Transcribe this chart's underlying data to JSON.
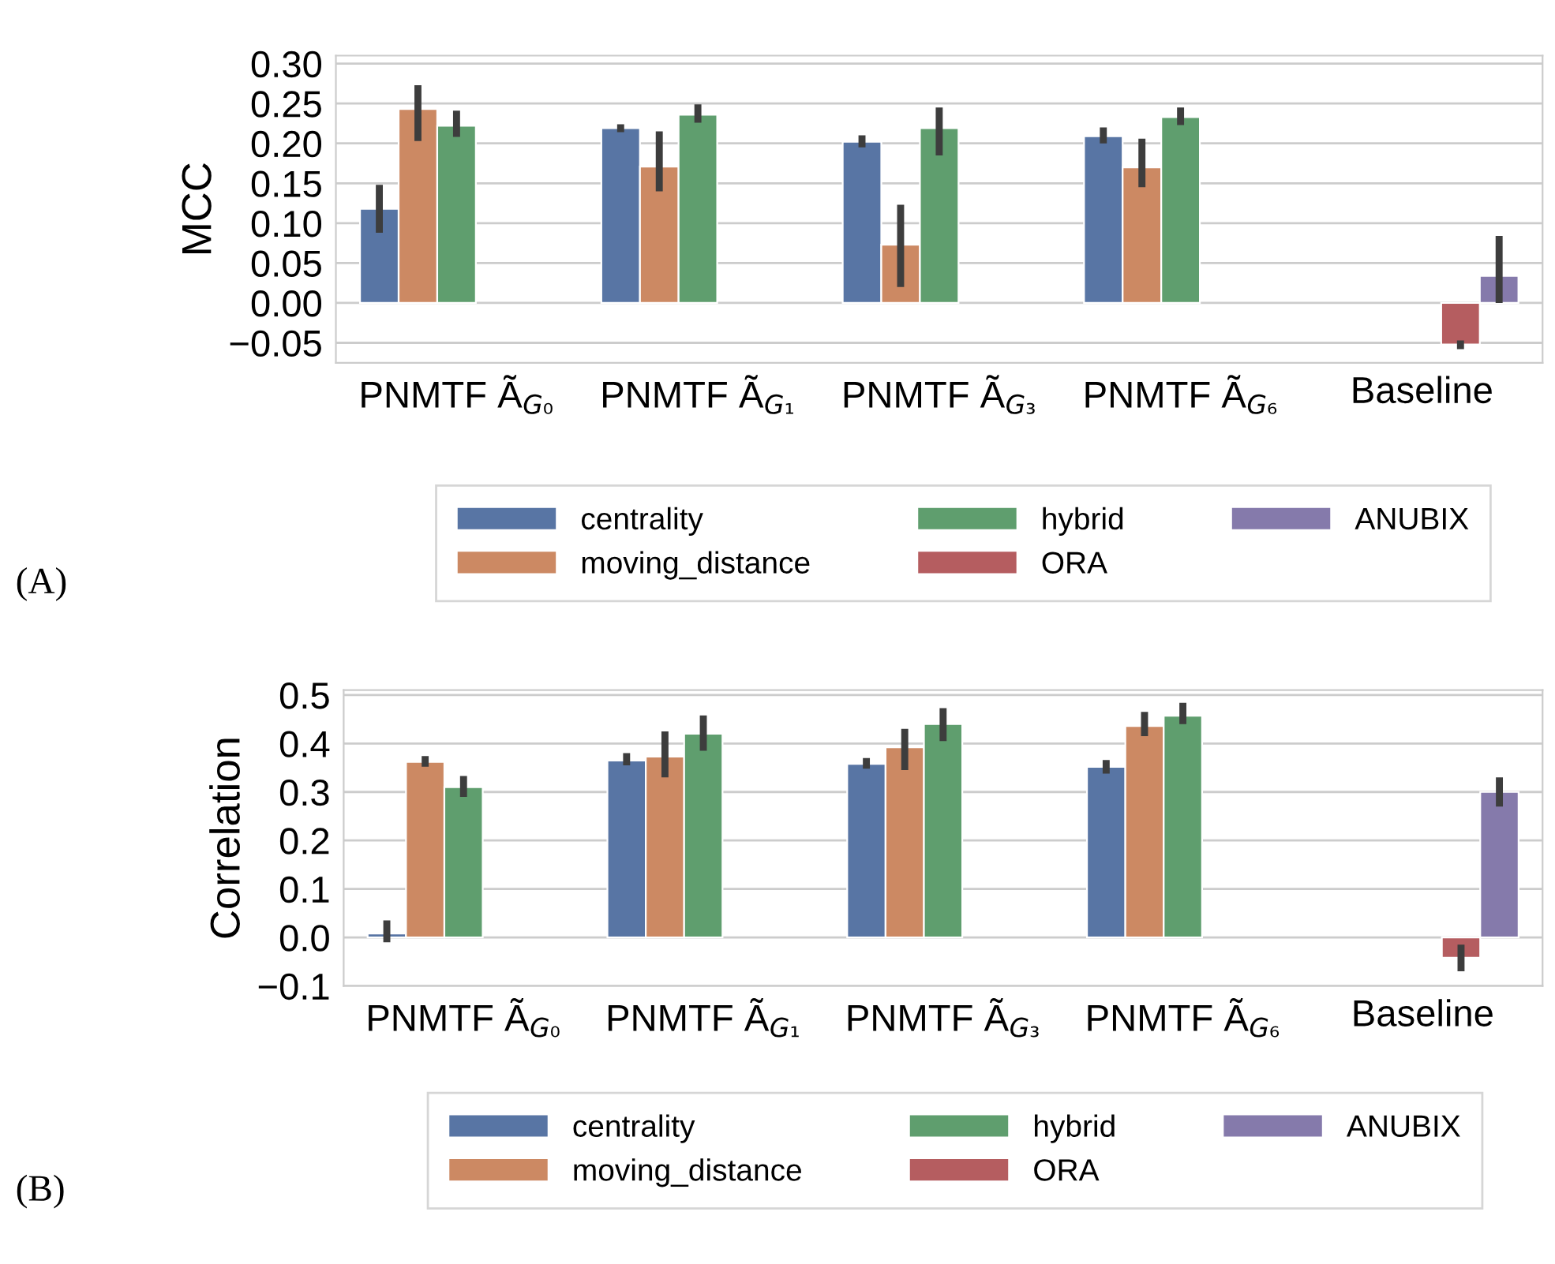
{
  "chart_data": [
    {
      "type": "bar",
      "ylabel": "MCC",
      "categories": [
        "PNMTF Ã$_{G₀}$",
        "PNMTF Ã$_{G₁}$",
        "PNMTF Ã$_{G₃}$",
        "PNMTF Ã$_{G₆}$",
        "Baseline"
      ],
      "ylim": [
        -0.075,
        0.31
      ],
      "yticks": [
        {
          "value": -0.05,
          "label": "−0.05"
        },
        {
          "value": 0,
          "label": "0.00"
        },
        {
          "value": 0.05,
          "label": "0.05"
        },
        {
          "value": 0.1,
          "label": "0.10"
        },
        {
          "value": 0.15,
          "label": "0.15"
        },
        {
          "value": 0.2,
          "label": "0.20"
        },
        {
          "value": 0.25,
          "label": "0.25"
        },
        {
          "value": 0.3,
          "label": "0.30"
        }
      ],
      "grid": "y",
      "legend": "bottom",
      "annotations": [
        "(A)"
      ],
      "series": [
        {
          "name": "centrality",
          "color": "#5875a4",
          "values": [
            0.118,
            0.219,
            0.202,
            0.209,
            null
          ],
          "errors": [
            [
              0.088,
              0.148
            ],
            [
              0.214,
              0.224
            ],
            [
              0.195,
              0.21
            ],
            [
              0.2,
              0.22
            ],
            null
          ]
        },
        {
          "name": "moving_distance",
          "color": "#cc8963",
          "values": [
            0.243,
            0.171,
            0.073,
            0.17,
            null
          ],
          "errors": [
            [
              0.203,
              0.273
            ],
            [
              0.14,
              0.215
            ],
            [
              0.02,
              0.123
            ],
            [
              0.145,
              0.206
            ],
            null
          ]
        },
        {
          "name": "hybrid",
          "color": "#5f9e6e",
          "values": [
            0.222,
            0.236,
            0.219,
            0.233,
            null
          ],
          "errors": [
            [
              0.208,
              0.241
            ],
            [
              0.226,
              0.249
            ],
            [
              0.185,
              0.245
            ],
            [
              0.223,
              0.245
            ],
            null
          ]
        },
        {
          "name": "ORA",
          "color": "#b55d60",
          "values": [
            null,
            null,
            null,
            null,
            -0.052
          ],
          "errors": [
            null,
            null,
            null,
            null,
            [
              -0.058,
              -0.047
            ]
          ]
        },
        {
          "name": "ANUBIX",
          "color": "#857aab",
          "values": [
            null,
            null,
            null,
            null,
            0.034
          ],
          "errors": [
            null,
            null,
            null,
            null,
            [
              0.0,
              0.084
            ]
          ]
        }
      ]
    },
    {
      "type": "bar",
      "ylabel": "Correlation",
      "categories": [
        "PNMTF Ã$_{G₀}$",
        "PNMTF Ã$_{G₁}$",
        "PNMTF Ã$_{G₃}$",
        "PNMTF Ã$_{G₆}$",
        "Baseline"
      ],
      "ylim": [
        -0.1,
        0.51
      ],
      "yticks": [
        {
          "value": -0.1,
          "label": "−0.1"
        },
        {
          "value": 0,
          "label": "0.0"
        },
        0.1,
        0.2,
        0.3,
        0.4,
        0.5
      ],
      "grid": "y",
      "legend": "bottom",
      "annotations": [
        "(B)"
      ],
      "series": [
        {
          "name": "centrality",
          "color": "#5875a4",
          "values": [
            0.008,
            0.365,
            0.358,
            0.352,
            null
          ],
          "errors": [
            [
              -0.01,
              0.035
            ],
            [
              0.355,
              0.38
            ],
            [
              0.348,
              0.37
            ],
            [
              0.338,
              0.366
            ],
            null
          ]
        },
        {
          "name": "moving_distance",
          "color": "#cc8963",
          "values": [
            0.362,
            0.373,
            0.392,
            0.436,
            null
          ],
          "errors": [
            [
              0.352,
              0.374
            ],
            [
              0.33,
              0.425
            ],
            [
              0.345,
              0.43
            ],
            [
              0.415,
              0.465
            ],
            null
          ]
        },
        {
          "name": "hybrid",
          "color": "#5f9e6e",
          "values": [
            0.31,
            0.42,
            0.44,
            0.457,
            null
          ],
          "errors": [
            [
              0.29,
              0.333
            ],
            [
              0.385,
              0.458
            ],
            [
              0.405,
              0.473
            ],
            [
              0.44,
              0.484
            ],
            null
          ]
        },
        {
          "name": "ORA",
          "color": "#b55d60",
          "values": [
            null,
            null,
            null,
            null,
            -0.042
          ],
          "errors": [
            null,
            null,
            null,
            null,
            [
              -0.07,
              -0.015
            ]
          ]
        },
        {
          "name": "ANUBIX",
          "color": "#857aab",
          "values": [
            null,
            null,
            null,
            null,
            0.3
          ],
          "errors": [
            null,
            null,
            null,
            null,
            [
              0.27,
              0.33
            ]
          ]
        }
      ]
    }
  ]
}
